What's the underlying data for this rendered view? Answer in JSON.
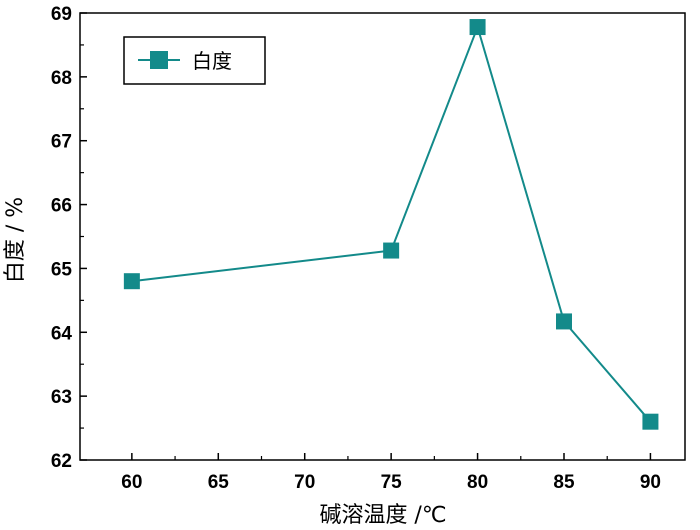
{
  "chart_data": {
    "type": "line",
    "xlabel": "碱溶温度 /℃",
    "ylabel": "白度 / %",
    "xlim": [
      57,
      92
    ],
    "ylim": [
      62,
      69
    ],
    "xticks": [
      60,
      65,
      70,
      75,
      80,
      85,
      90
    ],
    "yticks": [
      62,
      63,
      64,
      65,
      66,
      67,
      68,
      69
    ],
    "grid": false,
    "legend": {
      "position": "top-left"
    },
    "series": [
      {
        "name": "白度",
        "color": "#138a8a",
        "marker": "square",
        "x": [
          60,
          75,
          80,
          85,
          90
        ],
        "y": [
          64.8,
          65.28,
          68.78,
          64.17,
          62.6
        ]
      }
    ]
  }
}
